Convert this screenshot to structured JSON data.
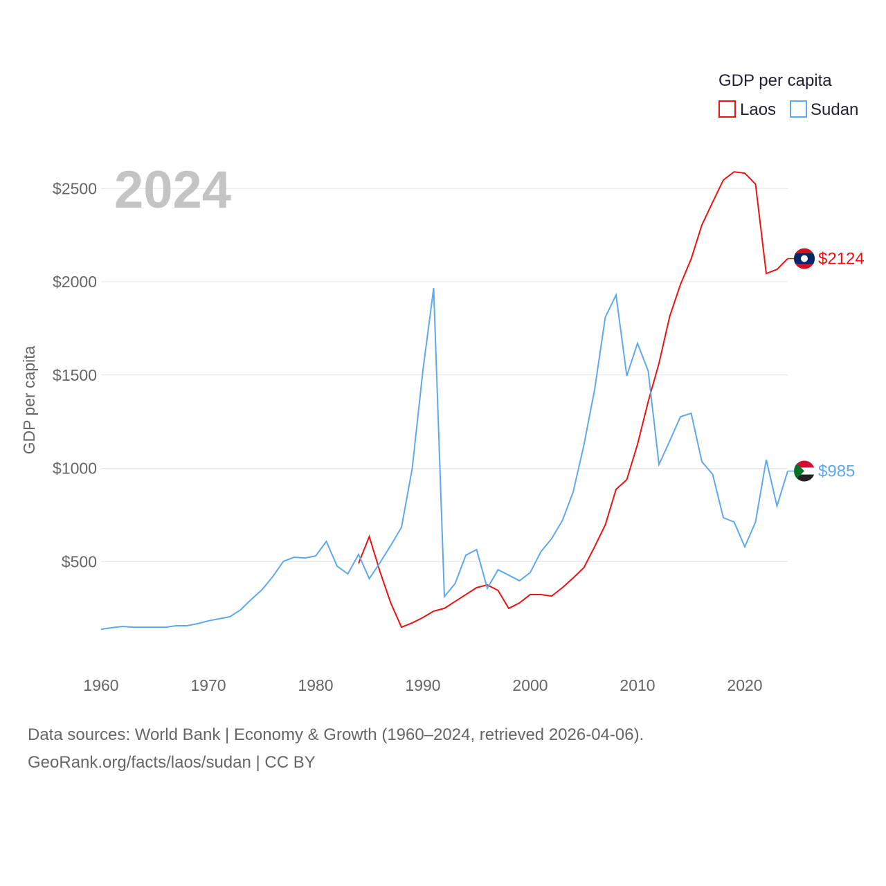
{
  "chart_data": {
    "type": "line",
    "title": "GDP per capita",
    "year_label": "2024",
    "ylabel": "GDP per capita",
    "xlabel": "",
    "xlim": [
      1960,
      2024
    ],
    "ylim": [
      0,
      2700
    ],
    "x_ticks": [
      1960,
      1970,
      1980,
      1990,
      2000,
      2010,
      2020
    ],
    "x_tick_labels": [
      "1960",
      "1970",
      "1980",
      "1990",
      "2000",
      "2010",
      "2020"
    ],
    "y_ticks": [
      500,
      1000,
      1500,
      2000,
      2500
    ],
    "y_tick_labels": [
      "$500",
      "$1000",
      "$1500",
      "$2000",
      "$2500"
    ],
    "grid": true,
    "legend_position": "top-right",
    "series": [
      {
        "name": "Laos",
        "color": "#ee1111",
        "end_label": "$2124",
        "start_year": 1984,
        "values": [
          490,
          634,
          445,
          278,
          148,
          171,
          200,
          234,
          249,
          286,
          323,
          360,
          375,
          345,
          249,
          278,
          323,
          323,
          315,
          360,
          412,
          467,
          579,
          697,
          887,
          939,
          1128,
          1358,
          1562,
          1814,
          1985,
          2122,
          2304,
          2426,
          2545,
          2589,
          2582,
          2523,
          2044,
          2066,
          2124
        ]
      },
      {
        "name": "Sudan",
        "color": "#5ea8ee",
        "end_label": "$985",
        "start_year": 1960,
        "values": [
          137,
          145,
          152,
          148,
          148,
          148,
          148,
          156,
          156,
          167,
          182,
          193,
          204,
          241,
          297,
          349,
          419,
          501,
          523,
          519,
          530,
          608,
          475,
          434,
          538,
          408,
          494,
          586,
          683,
          998,
          1525,
          1966,
          312,
          382,
          534,
          564,
          356,
          456,
          427,
          397,
          441,
          553,
          623,
          720,
          872,
          1124,
          1421,
          1810,
          1929,
          1495,
          1670,
          1521,
          1020,
          1146,
          1276,
          1295,
          1035,
          968,
          735,
          712,
          579,
          712,
          1046,
          798,
          985
        ]
      }
    ]
  },
  "footer": {
    "line1": "Data sources: World Bank | Economy & Growth (1960–2024, retrieved 2026-04-06).",
    "line2": "GeoRank.org/facts/laos/sudan | CC BY"
  }
}
